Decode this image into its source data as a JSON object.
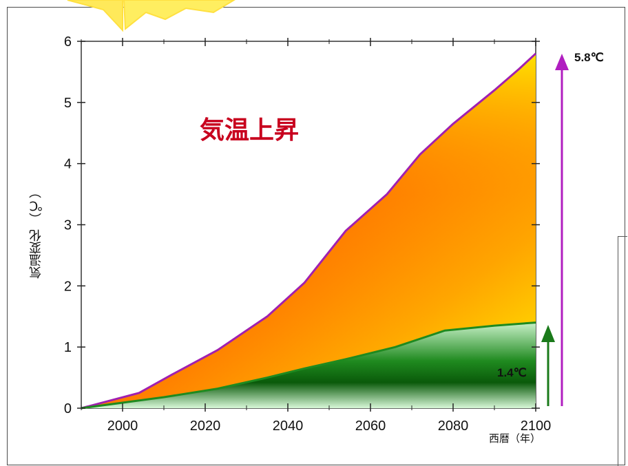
{
  "colors": {
    "upper_line": "#a020b0",
    "lower_line": "#1f8a1f",
    "headline": "#c8001e",
    "upper_arrow": "#b01ec0",
    "lower_arrow": "#1a7a1a"
  },
  "labels": {
    "headline": "気温上昇",
    "ylabel": "気温変化 （℃）",
    "xunit": "西暦（年）",
    "upper_value": "5.8℃",
    "lower_value": "1.4℃"
  },
  "chart_data": {
    "type": "area",
    "xlim": [
      1990,
      2100
    ],
    "ylim": [
      0,
      6
    ],
    "xticks": [
      "2000",
      "2020",
      "2040",
      "2060",
      "2080",
      "2100"
    ],
    "yticks": [
      "0",
      "1",
      "2",
      "3",
      "4",
      "5",
      "6"
    ],
    "series": [
      {
        "x": [
          1990,
          2004,
          2012,
          2023,
          2035,
          2044,
          2054,
          2064,
          2072,
          2080,
          2090,
          2096,
          2100
        ],
        "y": [
          0,
          0.25,
          0.55,
          0.95,
          1.5,
          2.05,
          2.9,
          3.5,
          4.15,
          4.65,
          5.2,
          5.55,
          5.8
        ]
      },
      {
        "x": [
          1990,
          2010,
          2023,
          2035,
          2044,
          2054,
          2066,
          2078,
          2090,
          2100
        ],
        "y": [
          0,
          0.18,
          0.32,
          0.5,
          0.65,
          0.8,
          1.0,
          1.27,
          1.35,
          1.4
        ]
      }
    ],
    "annotations": [
      "5.8℃",
      "1.4℃"
    ],
    "grid": false
  }
}
